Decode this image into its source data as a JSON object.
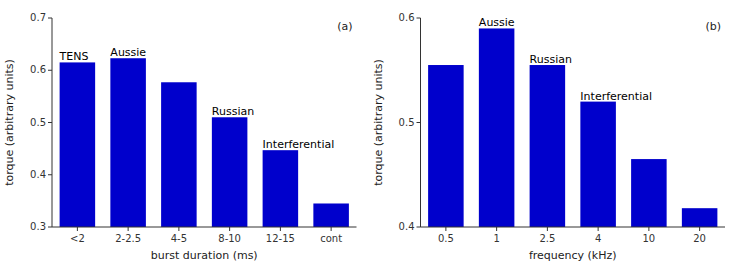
{
  "chart_data": [
    {
      "type": "bar",
      "title": "(a)",
      "categories": [
        "<2",
        "2-2.5",
        "4-5",
        "8-10",
        "12-15",
        "cont"
      ],
      "values": [
        0.615,
        0.623,
        0.577,
        0.51,
        0.447,
        0.345
      ],
      "color": "#0000CC",
      "xlabel": "burst duration (ms)",
      "ylabel": "torque (arbitrary units)",
      "ylim": [
        0.3,
        0.7
      ],
      "yticks": [
        0.3,
        0.4,
        0.5,
        0.6,
        0.7
      ],
      "grid": false,
      "annotations": [
        {
          "text": "TENS",
          "category": "<2"
        },
        {
          "text": "Aussie",
          "category": "2-2.5"
        },
        {
          "text": "Russian",
          "category": "8-10"
        },
        {
          "text": "Interferential",
          "category": "12-15"
        }
      ]
    },
    {
      "type": "bar",
      "title": "(b)",
      "categories": [
        "0.5",
        "1",
        "2.5",
        "4",
        "10",
        "20"
      ],
      "values": [
        0.555,
        0.59,
        0.555,
        0.52,
        0.465,
        0.418
      ],
      "color": "#0000CC",
      "xlabel": "frequency (kHz)",
      "ylabel": "torque (arbitrary units)",
      "ylim": [
        0.4,
        0.6
      ],
      "yticks": [
        0.4,
        0.5,
        0.6
      ],
      "grid": false,
      "annotations": [
        {
          "text": "Aussie",
          "category": "1"
        },
        {
          "text": "Russian",
          "category": "2.5"
        },
        {
          "text": "Interferential",
          "category": "4"
        }
      ]
    }
  ]
}
